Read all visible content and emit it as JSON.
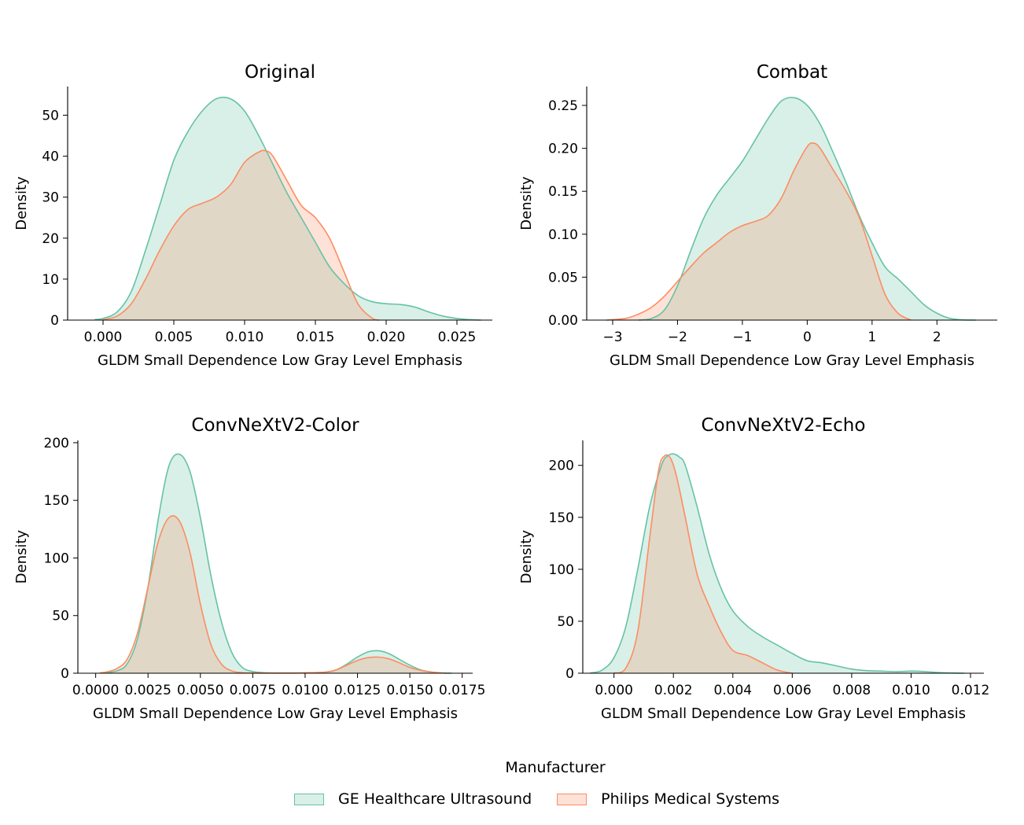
{
  "chart_data": [
    {
      "type": "area",
      "title": "Original",
      "xlabel": "GLDM Small Dependence Low Gray Level Emphasis",
      "ylabel": "Density",
      "xlim": [
        -0.0025,
        0.0275
      ],
      "ylim": [
        0,
        57
      ],
      "xticks": [
        0.0,
        0.005,
        0.01,
        0.015,
        0.02,
        0.025
      ],
      "xtick_labels": [
        "0.000",
        "0.005",
        "0.010",
        "0.015",
        "0.020",
        "0.025"
      ],
      "yticks": [
        0,
        10,
        20,
        30,
        40,
        50
      ],
      "ytick_labels": [
        "0",
        "10",
        "20",
        "30",
        "40",
        "50"
      ],
      "series": [
        {
          "name": "GE Healthcare Ultrasound",
          "x": [
            -0.0006,
            0.0,
            0.001,
            0.002,
            0.003,
            0.004,
            0.005,
            0.006,
            0.007,
            0.008,
            0.009,
            0.01,
            0.011,
            0.012,
            0.013,
            0.014,
            0.015,
            0.016,
            0.017,
            0.018,
            0.019,
            0.02,
            0.021,
            0.022,
            0.023,
            0.024,
            0.025,
            0.026,
            0.0267
          ],
          "y": [
            0.1,
            0.4,
            2,
            7,
            17,
            28,
            39,
            46,
            51,
            54,
            54,
            51,
            45,
            38,
            31,
            25,
            19,
            13,
            9,
            6,
            4.5,
            4,
            3.8,
            3.2,
            2,
            1,
            0.4,
            0.1,
            0
          ]
        },
        {
          "name": "Philips Medical Systems",
          "x": [
            0.0,
            0.001,
            0.002,
            0.003,
            0.004,
            0.005,
            0.006,
            0.007,
            0.008,
            0.009,
            0.01,
            0.011,
            0.0115,
            0.012,
            0.013,
            0.014,
            0.015,
            0.016,
            0.017,
            0.018,
            0.019,
            0.0195
          ],
          "y": [
            0.1,
            1,
            4,
            10,
            17,
            23,
            27,
            28.5,
            30,
            33,
            38.5,
            41,
            41.3,
            40,
            34,
            28,
            25,
            20,
            12,
            4,
            0.5,
            0
          ]
        }
      ]
    },
    {
      "type": "area",
      "title": "Combat",
      "xlabel": "GLDM Small Dependence Low Gray Level Emphasis",
      "ylabel": "Density",
      "xlim": [
        -3.4,
        2.93
      ],
      "ylim": [
        0,
        0.272
      ],
      "xticks": [
        -3,
        -2,
        -1,
        0,
        1,
        2
      ],
      "xtick_labels": [
        "−3",
        "−2",
        "−1",
        "0",
        "1",
        "2"
      ],
      "yticks": [
        0.0,
        0.05,
        0.1,
        0.15,
        0.2,
        0.25
      ],
      "ytick_labels": [
        "0.00",
        "0.05",
        "0.10",
        "0.15",
        "0.20",
        "0.25"
      ],
      "series": [
        {
          "name": "GE Healthcare Ultrasound",
          "x": [
            -2.6,
            -2.4,
            -2.2,
            -2.0,
            -1.8,
            -1.6,
            -1.4,
            -1.2,
            -1.0,
            -0.8,
            -0.6,
            -0.4,
            -0.2,
            0.0,
            0.2,
            0.4,
            0.6,
            0.8,
            1.0,
            1.2,
            1.4,
            1.6,
            1.8,
            2.0,
            2.2,
            2.4,
            2.6
          ],
          "y": [
            0.0,
            0.002,
            0.012,
            0.04,
            0.08,
            0.118,
            0.145,
            0.165,
            0.185,
            0.21,
            0.235,
            0.255,
            0.259,
            0.25,
            0.228,
            0.195,
            0.16,
            0.122,
            0.09,
            0.062,
            0.048,
            0.033,
            0.018,
            0.008,
            0.002,
            0.0003,
            0.0
          ]
        },
        {
          "name": "Philips Medical Systems",
          "x": [
            -3.1,
            -2.8,
            -2.6,
            -2.4,
            -2.2,
            -2.0,
            -1.8,
            -1.6,
            -1.4,
            -1.2,
            -1.0,
            -0.8,
            -0.6,
            -0.4,
            -0.2,
            0.0,
            0.1,
            0.2,
            0.4,
            0.6,
            0.8,
            1.0,
            1.2,
            1.4,
            1.6
          ],
          "y": [
            0.0,
            0.002,
            0.007,
            0.015,
            0.028,
            0.045,
            0.062,
            0.078,
            0.09,
            0.102,
            0.11,
            0.115,
            0.122,
            0.142,
            0.175,
            0.202,
            0.206,
            0.2,
            0.175,
            0.15,
            0.12,
            0.075,
            0.03,
            0.008,
            0.0
          ]
        }
      ]
    },
    {
      "type": "area",
      "title": "ConvNeXtV2-Color",
      "xlabel": "GLDM Small Dependence Low Gray Level Emphasis",
      "ylabel": "Density",
      "xlim": [
        -0.00085,
        0.018
      ],
      "ylim": [
        0,
        202
      ],
      "xticks": [
        0.0,
        0.0025,
        0.005,
        0.0075,
        0.01,
        0.0125,
        0.015,
        0.0175
      ],
      "xtick_labels": [
        "0.0000",
        "0.0025",
        "0.0050",
        "0.0075",
        "0.0100",
        "0.0125",
        "0.0150",
        "0.0175"
      ],
      "yticks": [
        0,
        50,
        100,
        150,
        200
      ],
      "ytick_labels": [
        "0",
        "50",
        "100",
        "150",
        "200"
      ],
      "series": [
        {
          "name": "GE Healthcare Ultrasound",
          "x": [
            0.0005,
            0.001,
            0.0015,
            0.002,
            0.0025,
            0.003,
            0.0035,
            0.004,
            0.0045,
            0.005,
            0.0055,
            0.006,
            0.0065,
            0.007,
            0.0075,
            0.008,
            0.009,
            0.01,
            0.011,
            0.0115,
            0.012,
            0.0125,
            0.013,
            0.0135,
            0.014,
            0.0145,
            0.015,
            0.0155,
            0.016,
            0.0165,
            0.017
          ],
          "y": [
            0.5,
            2,
            8,
            30,
            75,
            135,
            180,
            190,
            175,
            135,
            85,
            45,
            18,
            5,
            1.5,
            0.5,
            0.2,
            0.3,
            1,
            3,
            8,
            14,
            18.5,
            19.5,
            17,
            12,
            7,
            3,
            1.2,
            0.3,
            0
          ]
        },
        {
          "name": "Philips Medical Systems",
          "x": [
            0.0002,
            0.0005,
            0.001,
            0.0015,
            0.002,
            0.0025,
            0.003,
            0.0035,
            0.004,
            0.0045,
            0.005,
            0.0055,
            0.006,
            0.0065,
            0.007,
            0.0075,
            0.008,
            0.009,
            0.01,
            0.011,
            0.0115,
            0.012,
            0.0125,
            0.013,
            0.0135,
            0.014,
            0.0145,
            0.015,
            0.0155,
            0.016,
            0.0167
          ],
          "y": [
            0.3,
            1,
            4,
            12,
            35,
            75,
            115,
            135,
            132,
            105,
            60,
            25,
            8,
            2,
            0.5,
            0.2,
            0.1,
            0.1,
            0.3,
            1,
            3,
            7,
            11,
            13.5,
            14,
            12.5,
            9,
            5,
            2.5,
            1,
            0
          ]
        }
      ]
    },
    {
      "type": "area",
      "title": "ConvNeXtV2-Echo",
      "xlabel": "GLDM Small Dependence Low Gray Level Emphasis",
      "ylabel": "Density",
      "xlim": [
        -0.00105,
        0.01245
      ],
      "ylim": [
        0,
        224
      ],
      "xticks": [
        0.0,
        0.002,
        0.004,
        0.006,
        0.008,
        0.01,
        0.012
      ],
      "xtick_labels": [
        "0.000",
        "0.002",
        "0.004",
        "0.006",
        "0.008",
        "0.010",
        "0.012"
      ],
      "yticks": [
        0,
        50,
        100,
        150,
        200
      ],
      "ytick_labels": [
        "0",
        "50",
        "100",
        "150",
        "200"
      ],
      "series": [
        {
          "name": "GE Healthcare Ultrasound",
          "x": [
            -0.0008,
            -0.0004,
            0.0,
            0.0004,
            0.0008,
            0.0012,
            0.0016,
            0.0018,
            0.002,
            0.0022,
            0.0024,
            0.0028,
            0.0032,
            0.0036,
            0.004,
            0.0045,
            0.005,
            0.0055,
            0.006,
            0.0065,
            0.007,
            0.0075,
            0.008,
            0.0085,
            0.009,
            0.0095,
            0.01,
            0.0105,
            0.011,
            0.0118
          ],
          "y": [
            0.2,
            3,
            15,
            45,
            100,
            160,
            200,
            209,
            211,
            208,
            200,
            160,
            115,
            82,
            60,
            45,
            35,
            27,
            19,
            12,
            10,
            7,
            4,
            2.5,
            2,
            1.5,
            2,
            1.5,
            0.5,
            0
          ]
        },
        {
          "name": "Philips Medical Systems",
          "x": [
            0.0,
            0.0004,
            0.0008,
            0.0012,
            0.0015,
            0.0017,
            0.0019,
            0.0021,
            0.0024,
            0.0028,
            0.0032,
            0.0036,
            0.004,
            0.0045,
            0.005,
            0.0055,
            0.006
          ],
          "y": [
            0.2,
            5,
            40,
            130,
            195,
            209,
            207,
            190,
            150,
            95,
            65,
            40,
            22,
            17,
            10,
            3,
            0
          ]
        }
      ]
    }
  ],
  "colors": {
    "ge_line": "#66c2a5",
    "ge_fill": "#66c2a5",
    "philips_line": "#fc8d62",
    "philips_fill": "#fc8d62"
  },
  "legend": {
    "title": "Manufacturer",
    "items": [
      "GE Healthcare Ultrasound",
      "Philips Medical Systems"
    ]
  }
}
